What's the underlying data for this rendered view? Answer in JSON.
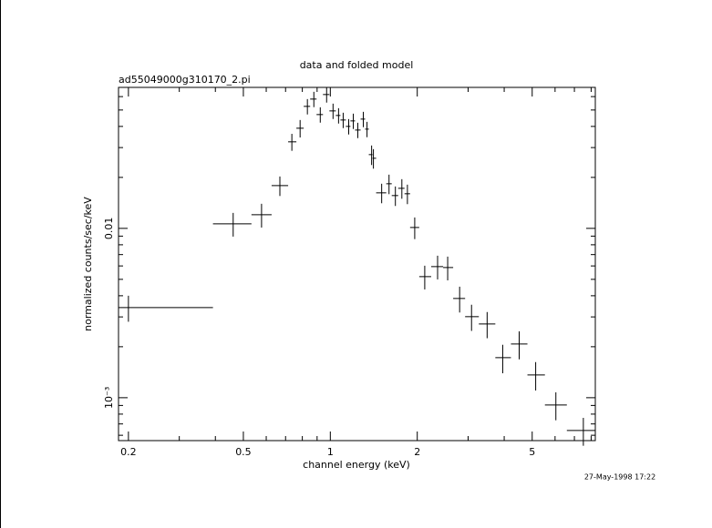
{
  "chart_data": {
    "type": "scatter",
    "title": "data and folded model",
    "subtitle": "ad55049000g310170_2.pi",
    "x_label": "channel energy (keV)",
    "y_label": "normalized counts/sec/keV",
    "timestamp": "27-May-1998 17:22",
    "color": "#000000",
    "xscale": "log",
    "yscale": "log",
    "xlim": [
      0.1848,
      8.27
    ],
    "ylim": [
      0.000558,
      0.068
    ],
    "xticks": [
      0.2,
      0.5,
      1,
      2,
      5
    ],
    "xminorticks": [
      0.3,
      0.4,
      0.6,
      0.7,
      0.8,
      0.9,
      3,
      4,
      6,
      7,
      8
    ],
    "yticks": [
      {
        "value": 0.001,
        "label": "10⁻³"
      },
      0.01
    ],
    "yminorticks": [
      0.0006,
      0.0007,
      0.0008,
      0.0009,
      0.002,
      0.003,
      0.004,
      0.005,
      0.006,
      0.007,
      0.008,
      0.009,
      0.02,
      0.03,
      0.04,
      0.05,
      0.06
    ],
    "x": [
      0.2,
      0.461,
      0.578,
      0.669,
      0.736,
      0.786,
      0.833,
      0.877,
      0.923,
      0.971,
      1.022,
      1.068,
      1.108,
      1.158,
      1.201,
      1.245,
      1.301,
      1.34,
      1.39,
      1.41,
      1.506,
      1.597,
      1.68,
      1.769,
      1.849,
      1.96,
      2.123,
      2.352,
      2.549,
      2.804,
      3.083,
      3.491,
      3.953,
      4.508,
      5.141,
      6.039,
      7.518
    ],
    "x_low": [
      0.1848,
      0.3924,
      0.5333,
      0.6263,
      0.7145,
      0.7629,
      0.809,
      0.8516,
      0.8961,
      0.9432,
      0.9927,
      1.045,
      1.084,
      1.132,
      1.174,
      1.218,
      1.273,
      1.32,
      1.359,
      1.4,
      1.441,
      1.562,
      1.632,
      1.718,
      1.807,
      1.889,
      2.032,
      2.235,
      2.458,
      2.663,
      2.929,
      3.268,
      3.727,
      4.221,
      4.814,
      5.534,
      6.592
    ],
    "x_high": [
      0.3924,
      0.5333,
      0.6263,
      0.7145,
      0.7629,
      0.809,
      0.8516,
      0.8961,
      0.9432,
      0.9927,
      1.045,
      1.084,
      1.132,
      1.174,
      1.218,
      1.273,
      1.32,
      1.359,
      1.4,
      1.441,
      1.562,
      1.632,
      1.718,
      1.807,
      1.889,
      2.032,
      2.235,
      2.458,
      2.663,
      2.929,
      3.268,
      3.727,
      4.221,
      4.814,
      5.534,
      6.592,
      8.27
    ],
    "values": [
      0.003405,
      0.01064,
      0.01204,
      0.01789,
      0.03243,
      0.03903,
      0.05253,
      0.05801,
      0.04699,
      0.06171,
      0.04938,
      0.04642,
      0.04364,
      0.04001,
      0.0431,
      0.03807,
      0.04418,
      0.03855,
      0.02726,
      0.02594,
      0.01621,
      0.01834,
      0.01562,
      0.01724,
      0.01601,
      0.01012,
      0.005188,
      0.005945,
      0.005871,
      0.003855,
      0.00301,
      0.002725,
      0.001724,
      0.002075,
      0.001363,
      0.0009057,
      0.0006402
    ],
    "yerr": [
      0.000596,
      0.0017,
      0.00193,
      0.00236,
      0.00373,
      0.00461,
      0.00546,
      0.00603,
      0.00489,
      0.00642,
      0.00514,
      0.00483,
      0.00454,
      0.00416,
      0.00448,
      0.00396,
      0.00459,
      0.00401,
      0.0036,
      0.00342,
      0.00214,
      0.00242,
      0.00206,
      0.00228,
      0.00211,
      0.00148,
      0.00083,
      0.00095,
      0.00094,
      0.00067,
      0.00053,
      0.00048,
      0.00033,
      0.00039,
      0.00026,
      0.00017,
      0.00012
    ]
  }
}
